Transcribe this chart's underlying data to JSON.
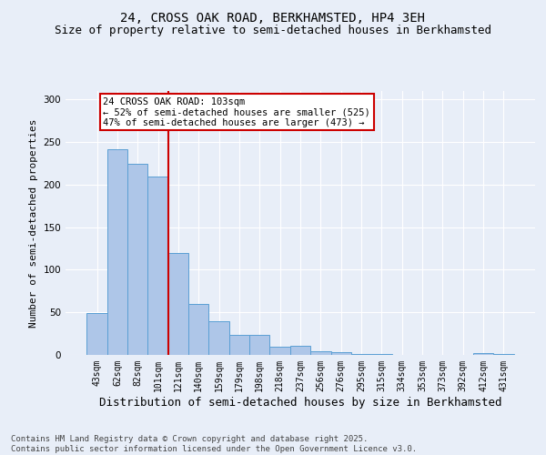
{
  "title": "24, CROSS OAK ROAD, BERKHAMSTED, HP4 3EH",
  "subtitle": "Size of property relative to semi-detached houses in Berkhamsted",
  "xlabel": "Distribution of semi-detached houses by size in Berkhamsted",
  "ylabel": "Number of semi-detached properties",
  "categories": [
    "43sqm",
    "62sqm",
    "82sqm",
    "101sqm",
    "121sqm",
    "140sqm",
    "159sqm",
    "179sqm",
    "198sqm",
    "218sqm",
    "237sqm",
    "256sqm",
    "276sqm",
    "295sqm",
    "315sqm",
    "334sqm",
    "353sqm",
    "373sqm",
    "392sqm",
    "412sqm",
    "431sqm"
  ],
  "values": [
    49,
    242,
    224,
    209,
    120,
    60,
    40,
    24,
    24,
    10,
    11,
    4,
    3,
    1,
    1,
    0,
    0,
    0,
    0,
    2,
    1
  ],
  "bar_color": "#aec6e8",
  "bar_edge_color": "#5a9fd4",
  "bg_color": "#e8eef8",
  "grid_color": "#ffffff",
  "red_line_x": 3.0,
  "annotation_text": "24 CROSS OAK ROAD: 103sqm\n← 52% of semi-detached houses are smaller (525)\n47% of semi-detached houses are larger (473) →",
  "annotation_box_color": "#ffffff",
  "annotation_box_edge": "#cc0000",
  "red_line_color": "#cc0000",
  "footer": "Contains HM Land Registry data © Crown copyright and database right 2025.\nContains public sector information licensed under the Open Government Licence v3.0.",
  "ylim": [
    0,
    310
  ],
  "title_fontsize": 10,
  "subtitle_fontsize": 9,
  "xlabel_fontsize": 9,
  "ylabel_fontsize": 8,
  "tick_fontsize": 7,
  "footer_fontsize": 6.5,
  "ann_fontsize": 7.5
}
